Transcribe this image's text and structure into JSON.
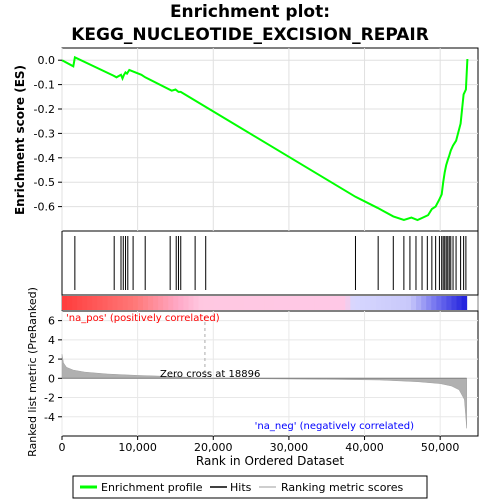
{
  "chart_data": {
    "type": "line",
    "title_line1": "Enrichment plot:",
    "title_line2": "KEGG_NUCLEOTIDE_EXCISION_REPAIR",
    "top_panel": {
      "ylabel": "Enrichment score (ES)",
      "ylim": [
        -0.7,
        0.05
      ],
      "yticks": [
        0.0,
        -0.1,
        -0.2,
        -0.3,
        -0.4,
        -0.5,
        -0.6
      ],
      "ytick_labels": [
        "0.0",
        "-0.1",
        "-0.2",
        "-0.3",
        "-0.4",
        "-0.5",
        "-0.6"
      ],
      "series": [
        {
          "name": "Enrichment profile",
          "color": "#00ff00",
          "x": [
            0,
            1500,
            1700,
            6800,
            7200,
            7800,
            8000,
            8200,
            8400,
            8600,
            8900,
            9300,
            10500,
            11000,
            14500,
            15000,
            15400,
            15700,
            38800,
            41700,
            43800,
            45200,
            46200,
            47000,
            47700,
            48400,
            48900,
            49400,
            49900,
            50200,
            50400,
            50600,
            50800,
            51000,
            51200,
            51400,
            51700,
            52100,
            52700,
            53100,
            53400,
            53600
          ],
          "y": [
            0.0,
            -0.025,
            0.012,
            -0.063,
            -0.07,
            -0.06,
            -0.075,
            -0.06,
            -0.05,
            -0.055,
            -0.04,
            -0.045,
            -0.06,
            -0.07,
            -0.125,
            -0.12,
            -0.13,
            -0.13,
            -0.56,
            -0.605,
            -0.64,
            -0.655,
            -0.645,
            -0.655,
            -0.645,
            -0.635,
            -0.61,
            -0.6,
            -0.57,
            -0.55,
            -0.5,
            -0.46,
            -0.43,
            -0.41,
            -0.39,
            -0.37,
            -0.35,
            -0.33,
            -0.26,
            -0.14,
            -0.12,
            0.005
          ]
        }
      ]
    },
    "hits_x": [
      1700,
      6900,
      7800,
      8100,
      8400,
      8700,
      9400,
      11000,
      14300,
      15100,
      15400,
      15700,
      17600,
      19000,
      38800,
      41800,
      43800,
      45200,
      46000,
      46800,
      47600,
      48300,
      48900,
      49400,
      49900,
      50200,
      50400,
      50600,
      50800,
      51000,
      51200,
      51400,
      51700,
      52100,
      52700,
      53100,
      53400
    ],
    "bottom_panel": {
      "ylabel": "Ranked list metric (PreRanked)",
      "xlabel": "Rank in Ordered Dataset",
      "xlim": [
        0,
        55000
      ],
      "xticks": [
        0,
        10000,
        20000,
        30000,
        40000,
        50000
      ],
      "xtick_labels": [
        "0",
        "10,000",
        "20,000",
        "30,000",
        "40,000",
        "50,000"
      ],
      "ylim": [
        -6,
        7
      ],
      "yticks": [
        6,
        4,
        2,
        0,
        -2,
        -4
      ],
      "ytick_labels": [
        "6",
        "4",
        "2",
        "0",
        "-2",
        "-4"
      ],
      "metric_curve": {
        "x": [
          0,
          200,
          600,
          1500,
          3000,
          6000,
          10000,
          15000,
          18896,
          25000,
          35000,
          42000,
          47000,
          50000,
          51500,
          52500,
          53200,
          53500
        ],
        "y": [
          2.5,
          1.6,
          1.15,
          0.85,
          0.65,
          0.45,
          0.3,
          0.18,
          0.0,
          -0.04,
          -0.1,
          -0.18,
          -0.35,
          -0.55,
          -0.8,
          -1.2,
          -2.2,
          -5.2
        ]
      },
      "zero_cross_label": "Zero cross at 18896",
      "zero_cross_x": 18896,
      "pos_label": "'na_pos' (positively correlated)",
      "neg_label": "'na_neg' (negatively correlated)"
    },
    "legend": [
      {
        "label": "Enrichment profile",
        "color": "#00ff00"
      },
      {
        "label": "Hits",
        "color": "#000000"
      },
      {
        "label": "Ranking metric scores",
        "color": "#bebebe"
      }
    ],
    "colors": {
      "es_line": "#00ff00",
      "pos_label": "#ff0000",
      "neg_label": "#0000ff",
      "metric_fill": "#b0b0b0"
    }
  }
}
